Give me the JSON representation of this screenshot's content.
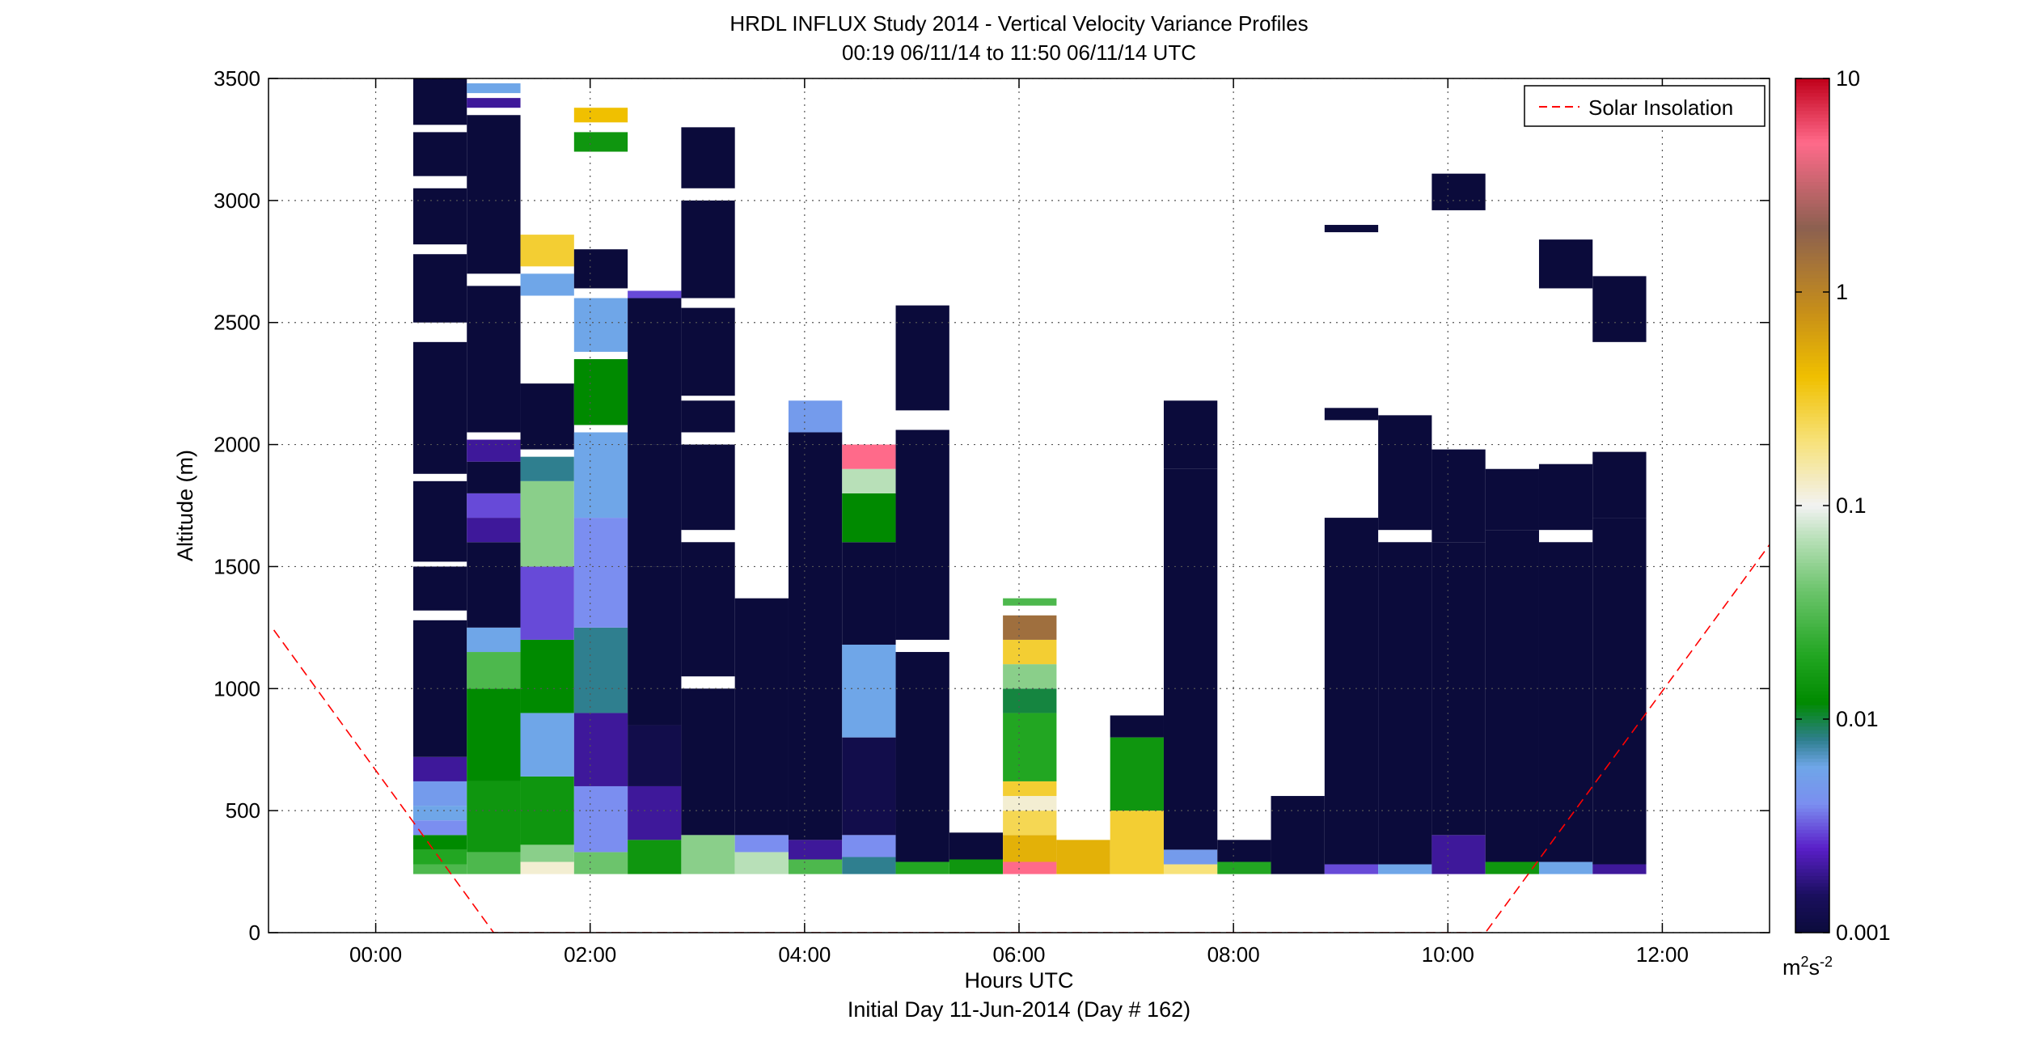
{
  "chart_data": {
    "type": "heatmap",
    "title": "HRDL INFLUX Study 2014 - Vertical Velocity Variance Profiles",
    "subtitle": "00:19 06/11/14 to 11:50 06/11/14  UTC",
    "xlabel": "Hours UTC",
    "xlabel2": "Initial Day 11-Jun-2014 (Day # 162)",
    "ylabel": "Altitude (m)",
    "x_unit": "hours UTC",
    "xlim": [
      -1.0,
      13.0
    ],
    "ylim": [
      0,
      3500
    ],
    "grid": true,
    "x_ticks": [
      {
        "value": 0,
        "label": "00:00"
      },
      {
        "value": 2,
        "label": "02:00"
      },
      {
        "value": 4,
        "label": "04:00"
      },
      {
        "value": 6,
        "label": "06:00"
      },
      {
        "value": 8,
        "label": "08:00"
      },
      {
        "value": 10,
        "label": "10:00"
      },
      {
        "value": 12,
        "label": "12:00"
      }
    ],
    "y_ticks": [
      {
        "value": 0,
        "label": "0"
      },
      {
        "value": 500,
        "label": "500"
      },
      {
        "value": 1000,
        "label": "1000"
      },
      {
        "value": 1500,
        "label": "1500"
      },
      {
        "value": 2000,
        "label": "2000"
      },
      {
        "value": 2500,
        "label": "2500"
      },
      {
        "value": 3000,
        "label": "3000"
      },
      {
        "value": 3500,
        "label": "3500"
      }
    ],
    "colorbar": {
      "scale": "log",
      "range": [
        0.001,
        10
      ],
      "unit_base": "m",
      "unit_exp1": "2",
      "unit_mid": "s",
      "unit_exp2": "-2",
      "ticks": [
        {
          "value": 0.001,
          "label": "0.001"
        },
        {
          "value": 0.01,
          "label": "0.01"
        },
        {
          "value": 0.1,
          "label": "0.1"
        },
        {
          "value": 1,
          "label": "1"
        },
        {
          "value": 10,
          "label": "10"
        }
      ],
      "stops": [
        {
          "value": 0.001,
          "color": "#0b0b3b"
        },
        {
          "value": 0.0015,
          "color": "#1a0f5e"
        },
        {
          "value": 0.0025,
          "color": "#5a1fc9"
        },
        {
          "value": 0.004,
          "color": "#7b8ef0"
        },
        {
          "value": 0.006,
          "color": "#6fa6e8"
        },
        {
          "value": 0.008,
          "color": "#2f7f8f"
        },
        {
          "value": 0.012,
          "color": "#008a00"
        },
        {
          "value": 0.02,
          "color": "#22a622"
        },
        {
          "value": 0.04,
          "color": "#6cc46c"
        },
        {
          "value": 0.07,
          "color": "#b8e0b8"
        },
        {
          "value": 0.1,
          "color": "#f2f2f2"
        },
        {
          "value": 0.2,
          "color": "#f7e27a"
        },
        {
          "value": 0.4,
          "color": "#f0c000"
        },
        {
          "value": 0.8,
          "color": "#c89018"
        },
        {
          "value": 2,
          "color": "#8c6050"
        },
        {
          "value": 5,
          "color": "#ff6a8a"
        },
        {
          "value": 10,
          "color": "#c0001a"
        }
      ]
    },
    "legend": {
      "placement": "top-right",
      "entries": [
        {
          "label": "Solar Insolation",
          "color": "#ff0000",
          "style": "dashed"
        }
      ]
    },
    "solar_insolation": [
      {
        "x": -0.95,
        "y": 1240
      },
      {
        "x": 1.1,
        "y": 0
      },
      {
        "x": 10.35,
        "y": 0
      },
      {
        "x": 13.0,
        "y": 1590
      }
    ],
    "profiles": [
      {
        "x0": 0.35,
        "x1": 0.85,
        "cells": [
          [
            240,
            280,
            0.03
          ],
          [
            280,
            340,
            0.02
          ],
          [
            340,
            400,
            0.012
          ],
          [
            400,
            460,
            0.004
          ],
          [
            460,
            520,
            0.006
          ],
          [
            520,
            620,
            0.005
          ],
          [
            620,
            720,
            0.002
          ],
          [
            720,
            1280,
            0.001
          ],
          [
            1320,
            1500,
            0.001
          ],
          [
            1520,
            1850,
            0.001
          ],
          [
            1880,
            2420,
            0.001
          ],
          [
            2500,
            2780,
            0.001
          ],
          [
            2820,
            3050,
            0.001
          ],
          [
            3100,
            3280,
            0.001
          ],
          [
            3310,
            3500,
            0.001
          ]
        ]
      },
      {
        "x0": 0.85,
        "x1": 1.35,
        "cells": [
          [
            240,
            330,
            0.03
          ],
          [
            330,
            620,
            0.015
          ],
          [
            620,
            1000,
            0.012
          ],
          [
            1000,
            1150,
            0.03
          ],
          [
            1150,
            1250,
            0.006
          ],
          [
            1250,
            1600,
            0.001
          ],
          [
            1600,
            1700,
            0.002
          ],
          [
            1700,
            1800,
            0.003
          ],
          [
            1800,
            1930,
            0.001
          ],
          [
            1930,
            2020,
            0.002
          ],
          [
            2050,
            2650,
            0.001
          ],
          [
            2700,
            3350,
            0.001
          ],
          [
            3380,
            3420,
            0.002
          ],
          [
            3440,
            3480,
            0.006
          ]
        ]
      },
      {
        "x0": 1.35,
        "x1": 1.85,
        "cells": [
          [
            240,
            290,
            0.12
          ],
          [
            290,
            360,
            0.05
          ],
          [
            360,
            640,
            0.015
          ],
          [
            640,
            900,
            0.006
          ],
          [
            900,
            1200,
            0.012
          ],
          [
            1200,
            1500,
            0.003
          ],
          [
            1500,
            1850,
            0.05
          ],
          [
            1850,
            1950,
            0.008
          ],
          [
            1980,
            2250,
            0.001
          ],
          [
            2610,
            2700,
            0.006
          ],
          [
            2730,
            2860,
            0.3
          ]
        ]
      },
      {
        "x0": 1.85,
        "x1": 2.35,
        "cells": [
          [
            240,
            330,
            0.04
          ],
          [
            330,
            600,
            0.004
          ],
          [
            600,
            900,
            0.002
          ],
          [
            900,
            1250,
            0.008
          ],
          [
            1250,
            1700,
            0.004
          ],
          [
            1700,
            2050,
            0.006
          ],
          [
            2080,
            2350,
            0.012
          ],
          [
            2380,
            2600,
            0.006
          ],
          [
            2640,
            2800,
            0.001
          ],
          [
            3200,
            3280,
            0.015
          ],
          [
            3320,
            3380,
            0.4
          ]
        ]
      },
      {
        "x0": 2.35,
        "x1": 2.85,
        "cells": [
          [
            240,
            380,
            0.015
          ],
          [
            380,
            600,
            0.002
          ],
          [
            600,
            850,
            0.0012
          ],
          [
            850,
            1500,
            0.001
          ],
          [
            1500,
            2000,
            0.001
          ],
          [
            2000,
            2600,
            0.001
          ],
          [
            2600,
            2630,
            0.003
          ]
        ]
      },
      {
        "x0": 2.85,
        "x1": 3.35,
        "cells": [
          [
            240,
            400,
            0.05
          ],
          [
            400,
            1000,
            0.001
          ],
          [
            1050,
            1600,
            0.001
          ],
          [
            1650,
            2000,
            0.001
          ],
          [
            2050,
            2180,
            0.001
          ],
          [
            2200,
            2560,
            0.001
          ],
          [
            2600,
            3000,
            0.001
          ],
          [
            3050,
            3300,
            0.001
          ]
        ]
      },
      {
        "x0": 3.35,
        "x1": 3.85,
        "cells": [
          [
            240,
            330,
            0.07
          ],
          [
            330,
            400,
            0.004
          ],
          [
            400,
            1370,
            0.001
          ]
        ]
      },
      {
        "x0": 3.85,
        "x1": 4.35,
        "cells": [
          [
            240,
            300,
            0.03
          ],
          [
            300,
            380,
            0.002
          ],
          [
            380,
            2050,
            0.001
          ],
          [
            2050,
            2180,
            0.005
          ]
        ]
      },
      {
        "x0": 4.35,
        "x1": 4.85,
        "cells": [
          [
            240,
            310,
            0.008
          ],
          [
            310,
            400,
            0.004
          ],
          [
            400,
            800,
            0.0012
          ],
          [
            800,
            1180,
            0.006
          ],
          [
            1180,
            1600,
            0.001
          ],
          [
            1600,
            1800,
            0.012
          ],
          [
            1800,
            1900,
            0.07
          ],
          [
            1900,
            2000,
            5
          ]
        ]
      },
      {
        "x0": 4.85,
        "x1": 5.35,
        "cells": [
          [
            240,
            290,
            0.02
          ],
          [
            290,
            1150,
            0.001
          ],
          [
            1200,
            2060,
            0.001
          ],
          [
            2140,
            2570,
            0.001
          ]
        ]
      },
      {
        "x0": 5.35,
        "x1": 5.85,
        "cells": [
          [
            240,
            300,
            0.015
          ],
          [
            300,
            410,
            0.001
          ]
        ]
      },
      {
        "x0": 5.85,
        "x1": 6.35,
        "cells": [
          [
            240,
            290,
            5
          ],
          [
            290,
            400,
            0.5
          ],
          [
            400,
            500,
            0.25
          ],
          [
            500,
            560,
            0.12
          ],
          [
            560,
            620,
            0.3
          ],
          [
            620,
            900,
            0.02
          ],
          [
            900,
            1000,
            0.01
          ],
          [
            1000,
            1100,
            0.05
          ],
          [
            1100,
            1200,
            0.3
          ],
          [
            1200,
            1300,
            1.5
          ],
          [
            1340,
            1370,
            0.03
          ]
        ]
      },
      {
        "x0": 6.35,
        "x1": 6.85,
        "cells": [
          [
            240,
            380,
            0.5
          ]
        ]
      },
      {
        "x0": 6.85,
        "x1": 7.35,
        "cells": [
          [
            240,
            500,
            0.3
          ],
          [
            500,
            800,
            0.015
          ],
          [
            800,
            890,
            0.001
          ]
        ]
      },
      {
        "x0": 7.35,
        "x1": 7.85,
        "cells": [
          [
            240,
            280,
            0.2
          ],
          [
            280,
            340,
            0.005
          ],
          [
            340,
            1900,
            0.001
          ],
          [
            1900,
            2180,
            0.001
          ]
        ]
      },
      {
        "x0": 7.85,
        "x1": 8.35,
        "cells": [
          [
            240,
            290,
            0.02
          ],
          [
            290,
            380,
            0.001
          ]
        ]
      },
      {
        "x0": 8.35,
        "x1": 8.85,
        "cells": [
          [
            240,
            560,
            0.001
          ]
        ]
      },
      {
        "x0": 8.85,
        "x1": 9.35,
        "cells": [
          [
            240,
            280,
            0.003
          ],
          [
            280,
            1700,
            0.001
          ],
          [
            2100,
            2150,
            0.001
          ],
          [
            2870,
            2900,
            0.001
          ]
        ]
      },
      {
        "x0": 9.35,
        "x1": 9.85,
        "cells": [
          [
            240,
            280,
            0.006
          ],
          [
            280,
            1600,
            0.001
          ],
          [
            1650,
            2120,
            0.001
          ]
        ]
      },
      {
        "x0": 9.85,
        "x1": 10.35,
        "cells": [
          [
            240,
            400,
            0.002
          ],
          [
            400,
            1600,
            0.001
          ],
          [
            1600,
            1980,
            0.001
          ],
          [
            2960,
            3110,
            0.001
          ]
        ]
      },
      {
        "x0": 10.35,
        "x1": 10.85,
        "cells": [
          [
            240,
            290,
            0.015
          ],
          [
            290,
            1650,
            0.001
          ],
          [
            1650,
            1900,
            0.001
          ]
        ]
      },
      {
        "x0": 10.85,
        "x1": 11.35,
        "cells": [
          [
            240,
            290,
            0.006
          ],
          [
            290,
            1600,
            0.001
          ],
          [
            1650,
            1920,
            0.001
          ],
          [
            2640,
            2840,
            0.001
          ]
        ]
      },
      {
        "x0": 11.35,
        "x1": 11.85,
        "cells": [
          [
            240,
            280,
            0.002
          ],
          [
            280,
            1700,
            0.001
          ],
          [
            1700,
            1970,
            0.001
          ],
          [
            2420,
            2690,
            0.001
          ]
        ]
      }
    ]
  }
}
